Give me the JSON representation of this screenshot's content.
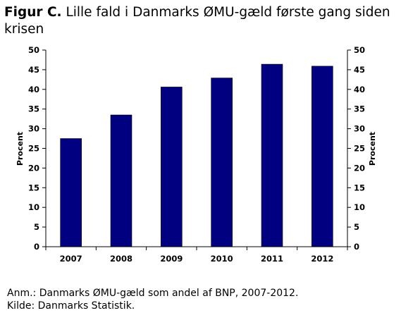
{
  "title": {
    "prefix": "Figur C.",
    "text": "Lille fald i Danmarks ØMU-gæld første gang siden krisen"
  },
  "chart_data": {
    "type": "bar",
    "categories": [
      "2007",
      "2008",
      "2009",
      "2010",
      "2011",
      "2012"
    ],
    "values": [
      27.5,
      33.5,
      40.6,
      42.9,
      46.4,
      45.9
    ],
    "ylabel": "Procent",
    "ylabel_right": "Procent",
    "ylim": [
      0,
      50
    ],
    "yticks": [
      0,
      5,
      10,
      15,
      20,
      25,
      30,
      35,
      40,
      45,
      50
    ],
    "grid": false,
    "legend": "none",
    "bar_color": "#000080"
  },
  "notes": {
    "line1": "Anm.: Danmarks ØMU-gæld som andel af BNP, 2007-2012.",
    "line2": "Kilde: Danmarks Statistik."
  }
}
